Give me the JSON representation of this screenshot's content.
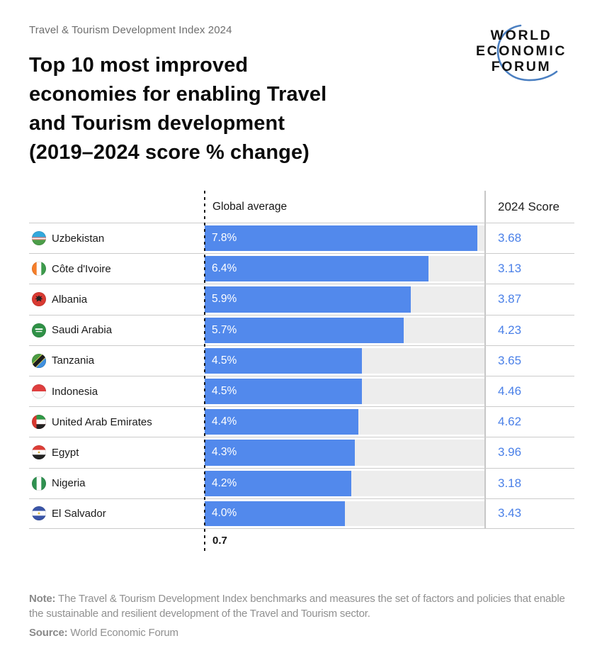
{
  "kicker": "Travel & Tourism Development Index 2024",
  "title_lines": [
    "Top 10 most improved",
    "economies for enabling Travel",
    "and Tourism development",
    "(2019–2024 score % change)"
  ],
  "logo": {
    "line1": "WORLD",
    "line2": "ECONOMIC",
    "line3": "FORUM",
    "arc_color": "#4a7fc1"
  },
  "chart": {
    "global_average_label": "Global average",
    "global_average_value": "0.7",
    "score_header": "2024 Score",
    "axis_max": 8.0,
    "rows": [
      {
        "country": "Uzbekistan",
        "flag": "uzbekistan",
        "change_pct": 7.8,
        "change_label": "7.8%",
        "score": "3.68"
      },
      {
        "country": "Côte d'Ivoire",
        "flag": "cote-divoire",
        "change_pct": 6.4,
        "change_label": "6.4%",
        "score": "3.13"
      },
      {
        "country": "Albania",
        "flag": "albania",
        "change_pct": 5.9,
        "change_label": "5.9%",
        "score": "3.87"
      },
      {
        "country": "Saudi Arabia",
        "flag": "saudi-arabia",
        "change_pct": 5.7,
        "change_label": "5.7%",
        "score": "4.23"
      },
      {
        "country": "Tanzania",
        "flag": "tanzania",
        "change_pct": 4.5,
        "change_label": "4.5%",
        "score": "3.65"
      },
      {
        "country": "Indonesia",
        "flag": "indonesia",
        "change_pct": 4.5,
        "change_label": "4.5%",
        "score": "4.46"
      },
      {
        "country": "United Arab Emirates",
        "flag": "uae",
        "change_pct": 4.4,
        "change_label": "4.4%",
        "score": "4.62"
      },
      {
        "country": "Egypt",
        "flag": "egypt",
        "change_pct": 4.3,
        "change_label": "4.3%",
        "score": "3.96"
      },
      {
        "country": "Nigeria",
        "flag": "nigeria",
        "change_pct": 4.2,
        "change_label": "4.2%",
        "score": "3.18"
      },
      {
        "country": "El Salvador",
        "flag": "el-salvador",
        "change_pct": 4.0,
        "change_label": "4.0%",
        "score": "3.43"
      }
    ]
  },
  "chart_data": {
    "type": "bar",
    "orientation": "horizontal",
    "title": "Top 10 most improved economies for enabling Travel and Tourism development (2019–2024 score % change)",
    "categories": [
      "Uzbekistan",
      "Côte d'Ivoire",
      "Albania",
      "Saudi Arabia",
      "Tanzania",
      "Indonesia",
      "United Arab Emirates",
      "Egypt",
      "Nigeria",
      "El Salvador"
    ],
    "values": [
      7.8,
      6.4,
      5.9,
      5.7,
      4.5,
      4.5,
      4.4,
      4.3,
      4.2,
      4.0
    ],
    "value_unit": "% change 2019–2024",
    "series_2024_score": [
      3.68,
      3.13,
      3.87,
      4.23,
      3.65,
      4.46,
      4.62,
      3.96,
      3.18,
      3.43
    ],
    "global_average": 0.7,
    "xlim": [
      0,
      8
    ],
    "grid": false,
    "data_labels": "inside-start"
  },
  "colors": {
    "bar": "#5289ec",
    "score_text": "#4a80e8",
    "track": "#ededed"
  },
  "note_label": "Note:",
  "note_text": " The Travel & Tourism Development Index benchmarks and measures the set of factors and policies that enable the sustainable and resilient development of the Travel and Tourism sector.",
  "source_label": "Source:",
  "source_text": " World Economic Forum"
}
